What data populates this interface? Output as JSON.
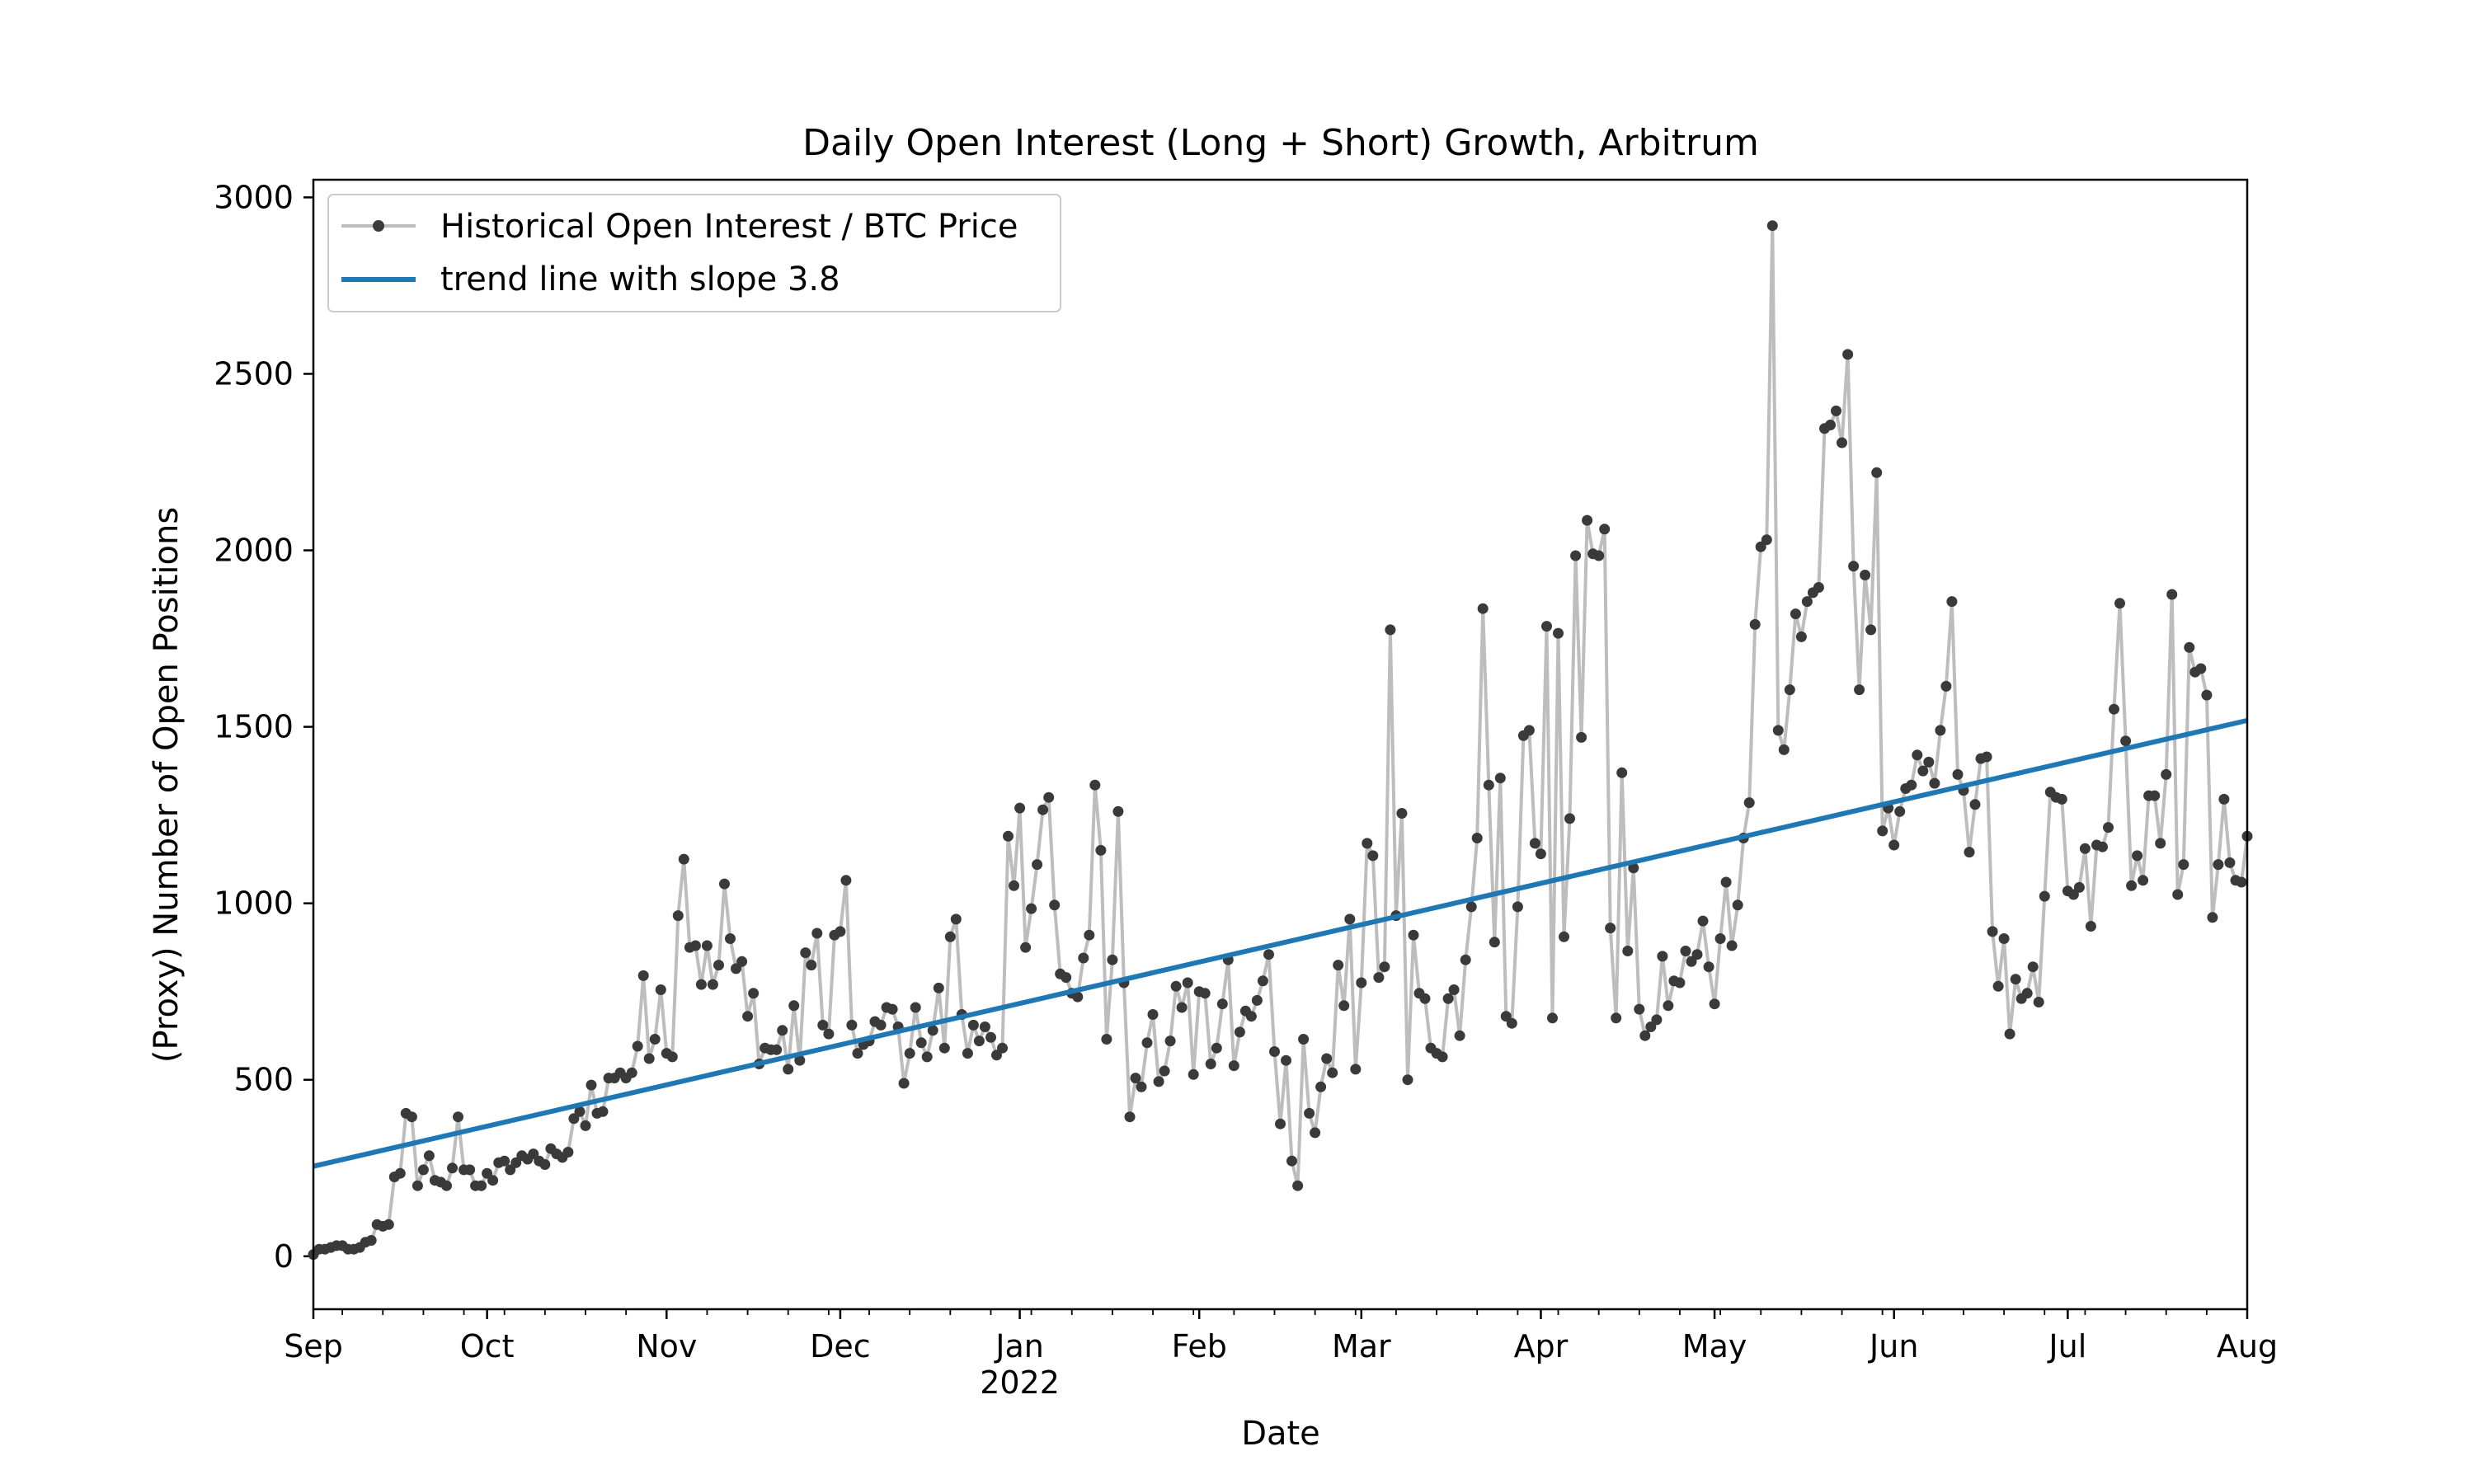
{
  "chart_data": {
    "type": "line",
    "title": "Daily Open Interest (Long + Short) Growth, Arbitrum",
    "xlabel": "Date",
    "ylabel": "(Proxy) Number of Open Positions",
    "xlim": [
      "2021-09-01",
      "2022-08-01"
    ],
    "ylim": [
      -150,
      3050
    ],
    "x_ticks": [
      {
        "date": "2021-09-01",
        "label": "Sep"
      },
      {
        "date": "2021-10-01",
        "label": "Oct"
      },
      {
        "date": "2021-11-01",
        "label": "Nov"
      },
      {
        "date": "2021-12-01",
        "label": "Dec"
      },
      {
        "date": "2022-01-01",
        "label": "Jan",
        "sublabel": "2022"
      },
      {
        "date": "2022-02-01",
        "label": "Feb"
      },
      {
        "date": "2022-03-01",
        "label": "Mar"
      },
      {
        "date": "2022-04-01",
        "label": "Apr"
      },
      {
        "date": "2022-05-01",
        "label": "May"
      },
      {
        "date": "2022-06-01",
        "label": "Jun"
      },
      {
        "date": "2022-07-01",
        "label": "Jul"
      },
      {
        "date": "2022-08-01",
        "label": "Aug"
      }
    ],
    "y_ticks": [
      0,
      500,
      1000,
      1500,
      2000,
      2500,
      3000
    ],
    "grid": false,
    "legend_position": "upper-left",
    "series": [
      {
        "name": "Historical Open Interest / BTC Price",
        "type": "line-with-markers",
        "line_color": "#bdbdbd",
        "marker_color": "#3a3a3a",
        "start_date": "2021-09-01",
        "frequency": "daily",
        "values": [
          5,
          20,
          20,
          25,
          30,
          30,
          20,
          20,
          25,
          40,
          45,
          90,
          85,
          90,
          225,
          235,
          405,
          395,
          200,
          245,
          285,
          215,
          210,
          200,
          250,
          395,
          245,
          245,
          200,
          200,
          235,
          215,
          265,
          270,
          245,
          265,
          285,
          275,
          290,
          270,
          260,
          305,
          290,
          280,
          295,
          390,
          410,
          370,
          485,
          405,
          410,
          505,
          505,
          520,
          505,
          520,
          595,
          795,
          560,
          615,
          755,
          575,
          565,
          965,
          1125,
          875,
          880,
          770,
          880,
          770,
          825,
          1055,
          900,
          815,
          835,
          680,
          745,
          545,
          590,
          585,
          585,
          640,
          530,
          710,
          555,
          860,
          825,
          915,
          655,
          630,
          910,
          920,
          1065,
          655,
          575,
          600,
          610,
          665,
          655,
          705,
          700,
          650,
          490,
          575,
          705,
          605,
          565,
          640,
          760,
          590,
          905,
          955,
          685,
          575,
          655,
          610,
          650,
          620,
          570,
          590,
          1190,
          1050,
          1270,
          875,
          985,
          1110,
          1265,
          1300,
          995,
          800,
          790,
          745,
          735,
          845,
          910,
          1335,
          1150,
          615,
          840,
          1260,
          775,
          395,
          505,
          480,
          605,
          685,
          495,
          525,
          610,
          765,
          705,
          775,
          515,
          750,
          745,
          545,
          590,
          715,
          840,
          540,
          635,
          695,
          680,
          725,
          780,
          855,
          580,
          375,
          555,
          270,
          200,
          615,
          405,
          350,
          480,
          560,
          520,
          825,
          710,
          955,
          530,
          775,
          1170,
          1135,
          790,
          820,
          1775,
          965,
          1255,
          500,
          910,
          745,
          730,
          590,
          575,
          565,
          730,
          755,
          625,
          840,
          990,
          1185,
          1835,
          1335,
          890,
          1355,
          680,
          660,
          990,
          1475,
          1490,
          1170,
          1140,
          1785,
          675,
          1765,
          905,
          1240,
          1985,
          1470,
          2085,
          1990,
          1985,
          2060,
          930,
          675,
          1370,
          865,
          1100,
          700,
          625,
          650,
          670,
          850,
          710,
          780,
          775,
          865,
          835,
          855,
          950,
          820,
          715,
          900,
          1060,
          880,
          995,
          1185,
          1285,
          1790,
          2010,
          2030,
          2920,
          1490,
          1435,
          1605,
          1820,
          1755,
          1855,
          1880,
          1895,
          2345,
          2355,
          2395,
          2305,
          2555,
          1955,
          1605,
          1930,
          1775,
          2220,
          1205,
          1270,
          1165,
          1260,
          1325,
          1335,
          1420,
          1375,
          1400,
          1340,
          1490,
          1615,
          1855,
          1365,
          1320,
          1145,
          1280,
          1410,
          1415,
          920,
          765,
          900,
          630,
          785,
          730,
          745,
          820,
          720,
          1020,
          1315,
          1300,
          1295,
          1035,
          1025,
          1045,
          1155,
          935,
          1165,
          1160,
          1215,
          1550,
          1850,
          1460,
          1050,
          1135,
          1065,
          1305,
          1305,
          1170,
          1365,
          1875,
          1025,
          1110,
          1725,
          1655,
          1665,
          1590,
          960,
          1110,
          1295,
          1115,
          1065,
          1060,
          1190
        ]
      },
      {
        "name": "trend line with slope 3.8",
        "type": "line",
        "color": "#1f77b4",
        "start": {
          "date": "2021-09-01",
          "value": 255
        },
        "end": {
          "date": "2022-08-01",
          "value": 1518
        }
      }
    ]
  }
}
